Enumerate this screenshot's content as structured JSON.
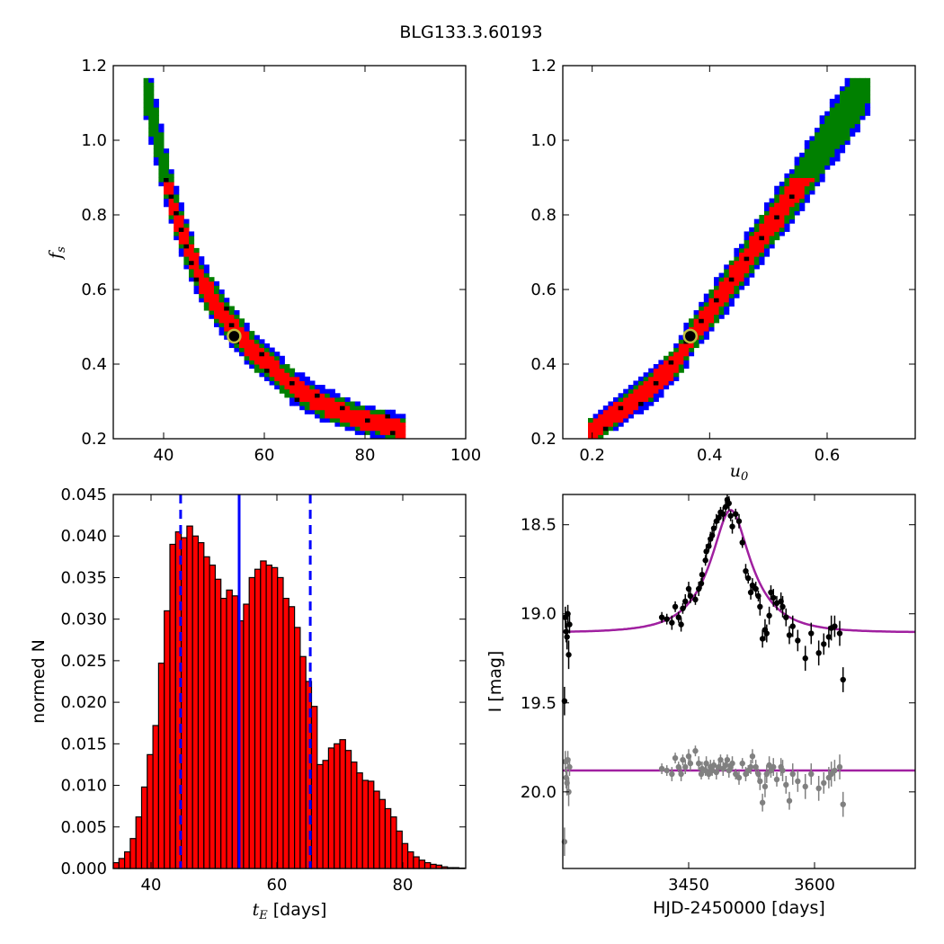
{
  "title": "BLG133.3.60193",
  "colors": {
    "blue": "#0000ff",
    "green": "#008000",
    "red": "#ff0000",
    "black": "#000000",
    "magenta": "#a020a0",
    "grey": "#808080",
    "marker": "#bfbf40"
  },
  "chart_data": [
    {
      "type": "heatmap",
      "panel": "tE-fs",
      "xlabel": "",
      "ylabel": "f_s",
      "ylabel_main": "f",
      "ylabel_sub": "s",
      "xlim": [
        30,
        100
      ],
      "ylim": [
        0.2,
        1.2
      ],
      "xticks": [
        "40",
        "60",
        "80",
        "100"
      ],
      "yticks": [
        "0.2",
        "0.4",
        "0.6",
        "0.8",
        "1.0",
        "1.2"
      ],
      "ridge": [
        [
          36,
          1.17
        ],
        [
          38,
          1.05
        ],
        [
          40,
          0.93
        ],
        [
          42,
          0.82
        ],
        [
          44,
          0.74
        ],
        [
          46,
          0.67
        ],
        [
          48,
          0.61
        ],
        [
          50,
          0.57
        ],
        [
          52,
          0.53
        ],
        [
          55,
          0.48
        ],
        [
          58,
          0.43
        ],
        [
          61,
          0.4
        ],
        [
          64,
          0.36
        ],
        [
          68,
          0.32
        ],
        [
          72,
          0.29
        ],
        [
          76,
          0.27
        ],
        [
          80,
          0.25
        ],
        [
          84,
          0.24
        ],
        [
          88,
          0.22
        ]
      ],
      "best_fit": {
        "x": 54,
        "y": 0.475
      }
    },
    {
      "type": "heatmap",
      "panel": "u0-fs",
      "xlabel": "u_0",
      "xlabel_main": "u",
      "xlabel_sub": "0",
      "ylabel": "",
      "xlim": [
        0.15,
        0.75
      ],
      "ylim": [
        0.2,
        1.2
      ],
      "xticks": [
        "0.2",
        "0.4",
        "0.6"
      ],
      "yticks": [
        "0.2",
        "0.4",
        "0.6",
        "0.8",
        "1.0",
        "1.2"
      ],
      "ridge": [
        [
          0.19,
          0.21
        ],
        [
          0.22,
          0.245
        ],
        [
          0.26,
          0.29
        ],
        [
          0.3,
          0.34
        ],
        [
          0.34,
          0.4
        ],
        [
          0.37,
          0.475
        ],
        [
          0.4,
          0.54
        ],
        [
          0.44,
          0.63
        ],
        [
          0.48,
          0.72
        ],
        [
          0.52,
          0.81
        ],
        [
          0.56,
          0.9
        ],
        [
          0.6,
          1.0
        ],
        [
          0.64,
          1.09
        ],
        [
          0.67,
          1.17
        ]
      ],
      "best_fit": {
        "x": 0.367,
        "y": 0.475
      }
    },
    {
      "type": "bar",
      "panel": "histogram",
      "xlabel": "t_E [days]",
      "xlabel_main": "t",
      "xlabel_sub": "E",
      "xlabel_rest": " [days]",
      "ylabel": "normed N",
      "xlim": [
        34,
        90
      ],
      "ylim": [
        0,
        0.045
      ],
      "xticks": [
        "40",
        "60",
        "80"
      ],
      "yticks": [
        "0.000",
        "0.005",
        "0.010",
        "0.015",
        "0.020",
        "0.025",
        "0.030",
        "0.035",
        "0.040",
        "0.045"
      ],
      "bin_start": 34.0,
      "bin_width": 0.9,
      "values": [
        0.0007,
        0.0012,
        0.002,
        0.0036,
        0.0062,
        0.0098,
        0.0137,
        0.0172,
        0.0247,
        0.031,
        0.039,
        0.0405,
        0.0398,
        0.0412,
        0.04,
        0.0392,
        0.0375,
        0.0365,
        0.0348,
        0.0325,
        0.0335,
        0.0328,
        0.0298,
        0.0318,
        0.035,
        0.036,
        0.037,
        0.0365,
        0.0362,
        0.035,
        0.0325,
        0.0315,
        0.029,
        0.0255,
        0.0225,
        0.0195,
        0.0125,
        0.013,
        0.0145,
        0.015,
        0.0155,
        0.0142,
        0.0128,
        0.0115,
        0.0106,
        0.0105,
        0.0093,
        0.0083,
        0.0072,
        0.0062,
        0.0045,
        0.003,
        0.002,
        0.0014,
        0.001,
        0.0007,
        0.0005,
        0.0004,
        0.0002,
        0.0001,
        0.0001,
        5e-05
      ],
      "median": 54.0,
      "lower": 44.7,
      "upper": 65.3
    },
    {
      "type": "scatter",
      "panel": "lightcurve",
      "xlabel": "HJD-2450000 [days]",
      "ylabel": "I [mag]",
      "xlim": [
        3300,
        3720
      ],
      "ylim": [
        20.43,
        18.33
      ],
      "xticks": [
        "3450",
        "3600"
      ],
      "yticks": [
        "18.5",
        "19.0",
        "19.5",
        "20.0"
      ],
      "model": {
        "t0": 3500,
        "tE": 54,
        "u0": 0.367,
        "fs": 0.475,
        "I0": 19.105
      },
      "residual_baseline": 19.88,
      "black_points": [
        [
          3302,
          19.49,
          0.08
        ],
        [
          3303,
          19.02,
          0.06
        ],
        [
          3304,
          19.1,
          0.06
        ],
        [
          3305,
          19.13,
          0.07
        ],
        [
          3306,
          19.0,
          0.05
        ],
        [
          3307,
          19.23,
          0.08
        ],
        [
          3308,
          19.06,
          0.05
        ],
        [
          3418,
          19.02,
          0.03
        ],
        [
          3424,
          19.03,
          0.03
        ],
        [
          3430,
          19.05,
          0.04
        ],
        [
          3434,
          18.96,
          0.03
        ],
        [
          3438,
          19.02,
          0.03
        ],
        [
          3441,
          19.06,
          0.04
        ],
        [
          3443,
          18.97,
          0.03
        ],
        [
          3446,
          18.93,
          0.04
        ],
        [
          3450,
          18.86,
          0.04
        ],
        [
          3452,
          18.9,
          0.04
        ],
        [
          3458,
          18.92,
          0.03
        ],
        [
          3462,
          18.86,
          0.04
        ],
        [
          3465,
          18.83,
          0.03
        ],
        [
          3466,
          18.78,
          0.04
        ],
        [
          3470,
          18.7,
          0.03
        ],
        [
          3471,
          18.65,
          0.04
        ],
        [
          3474,
          18.62,
          0.03
        ],
        [
          3476,
          18.58,
          0.04
        ],
        [
          3478,
          18.56,
          0.03
        ],
        [
          3480,
          18.52,
          0.03
        ],
        [
          3483,
          18.48,
          0.04
        ],
        [
          3486,
          18.46,
          0.03
        ],
        [
          3488,
          18.43,
          0.03
        ],
        [
          3491,
          18.44,
          0.04
        ],
        [
          3494,
          18.4,
          0.03
        ],
        [
          3496,
          18.36,
          0.03
        ],
        [
          3498,
          18.38,
          0.04
        ],
        [
          3500,
          18.45,
          0.03
        ],
        [
          3502,
          18.51,
          0.04
        ],
        [
          3506,
          18.44,
          0.03
        ],
        [
          3510,
          18.48,
          0.04
        ],
        [
          3514,
          18.6,
          0.03
        ],
        [
          3518,
          18.76,
          0.04
        ],
        [
          3521,
          18.8,
          0.03
        ],
        [
          3524,
          18.88,
          0.04
        ],
        [
          3526,
          18.84,
          0.04
        ],
        [
          3530,
          18.86,
          0.04
        ],
        [
          3533,
          18.9,
          0.03
        ],
        [
          3535,
          18.96,
          0.05
        ],
        [
          3538,
          19.14,
          0.05
        ],
        [
          3541,
          19.09,
          0.06
        ],
        [
          3543,
          19.11,
          0.05
        ],
        [
          3546,
          19.01,
          0.05
        ],
        [
          3548,
          18.88,
          0.04
        ],
        [
          3551,
          18.91,
          0.05
        ],
        [
          3555,
          18.94,
          0.04
        ],
        [
          3560,
          18.93,
          0.05
        ],
        [
          3562,
          18.96,
          0.06
        ],
        [
          3566,
          19.02,
          0.05
        ],
        [
          3570,
          19.12,
          0.05
        ],
        [
          3574,
          19.07,
          0.06
        ],
        [
          3580,
          19.15,
          0.06
        ],
        [
          3589,
          19.25,
          0.07
        ],
        [
          3596,
          19.11,
          0.06
        ],
        [
          3605,
          19.22,
          0.07
        ],
        [
          3611,
          19.17,
          0.06
        ],
        [
          3617,
          19.13,
          0.06
        ],
        [
          3620,
          19.08,
          0.07
        ],
        [
          3624,
          19.07,
          0.06
        ],
        [
          3630,
          19.11,
          0.07
        ],
        [
          3634,
          19.37,
          0.07
        ]
      ],
      "grey_points": [
        [
          3302,
          20.28,
          0.08
        ],
        [
          3303,
          19.83,
          0.06
        ],
        [
          3304,
          19.92,
          0.06
        ],
        [
          3305,
          19.95,
          0.07
        ],
        [
          3306,
          19.82,
          0.05
        ],
        [
          3307,
          20.0,
          0.08
        ],
        [
          3308,
          19.86,
          0.05
        ],
        [
          3418,
          19.87,
          0.03
        ],
        [
          3424,
          19.88,
          0.03
        ],
        [
          3430,
          19.9,
          0.04
        ],
        [
          3434,
          19.81,
          0.03
        ],
        [
          3438,
          19.86,
          0.03
        ],
        [
          3441,
          19.9,
          0.04
        ],
        [
          3443,
          19.82,
          0.03
        ],
        [
          3446,
          19.86,
          0.04
        ],
        [
          3450,
          19.8,
          0.04
        ],
        [
          3452,
          19.84,
          0.04
        ],
        [
          3458,
          19.77,
          0.03
        ],
        [
          3462,
          19.84,
          0.04
        ],
        [
          3465,
          19.9,
          0.03
        ],
        [
          3466,
          19.87,
          0.04
        ],
        [
          3470,
          19.88,
          0.03
        ],
        [
          3471,
          19.84,
          0.04
        ],
        [
          3474,
          19.9,
          0.03
        ],
        [
          3476,
          19.86,
          0.04
        ],
        [
          3478,
          19.88,
          0.03
        ],
        [
          3480,
          19.85,
          0.03
        ],
        [
          3483,
          19.89,
          0.04
        ],
        [
          3486,
          19.86,
          0.03
        ],
        [
          3488,
          19.82,
          0.03
        ],
        [
          3491,
          19.87,
          0.04
        ],
        [
          3494,
          19.85,
          0.03
        ],
        [
          3496,
          19.82,
          0.03
        ],
        [
          3498,
          19.88,
          0.04
        ],
        [
          3500,
          19.86,
          0.03
        ],
        [
          3502,
          19.84,
          0.04
        ],
        [
          3506,
          19.9,
          0.03
        ],
        [
          3510,
          19.92,
          0.04
        ],
        [
          3514,
          19.84,
          0.03
        ],
        [
          3518,
          19.9,
          0.04
        ],
        [
          3521,
          19.88,
          0.03
        ],
        [
          3524,
          19.86,
          0.04
        ],
        [
          3526,
          19.8,
          0.04
        ],
        [
          3530,
          19.86,
          0.04
        ],
        [
          3533,
          19.9,
          0.03
        ],
        [
          3535,
          19.94,
          0.05
        ],
        [
          3538,
          20.06,
          0.05
        ],
        [
          3541,
          19.97,
          0.06
        ],
        [
          3543,
          19.9,
          0.05
        ],
        [
          3546,
          19.85,
          0.05
        ],
        [
          3548,
          19.88,
          0.04
        ],
        [
          3551,
          19.86,
          0.05
        ],
        [
          3555,
          19.93,
          0.04
        ],
        [
          3560,
          19.86,
          0.05
        ],
        [
          3562,
          19.88,
          0.06
        ],
        [
          3566,
          19.96,
          0.05
        ],
        [
          3570,
          20.05,
          0.05
        ],
        [
          3574,
          19.9,
          0.06
        ],
        [
          3580,
          19.94,
          0.06
        ],
        [
          3589,
          19.97,
          0.07
        ],
        [
          3596,
          19.9,
          0.06
        ],
        [
          3605,
          19.98,
          0.07
        ],
        [
          3611,
          19.95,
          0.06
        ],
        [
          3617,
          19.92,
          0.06
        ],
        [
          3620,
          19.9,
          0.07
        ],
        [
          3624,
          19.88,
          0.06
        ],
        [
          3630,
          19.86,
          0.07
        ],
        [
          3634,
          20.07,
          0.07
        ]
      ]
    }
  ]
}
